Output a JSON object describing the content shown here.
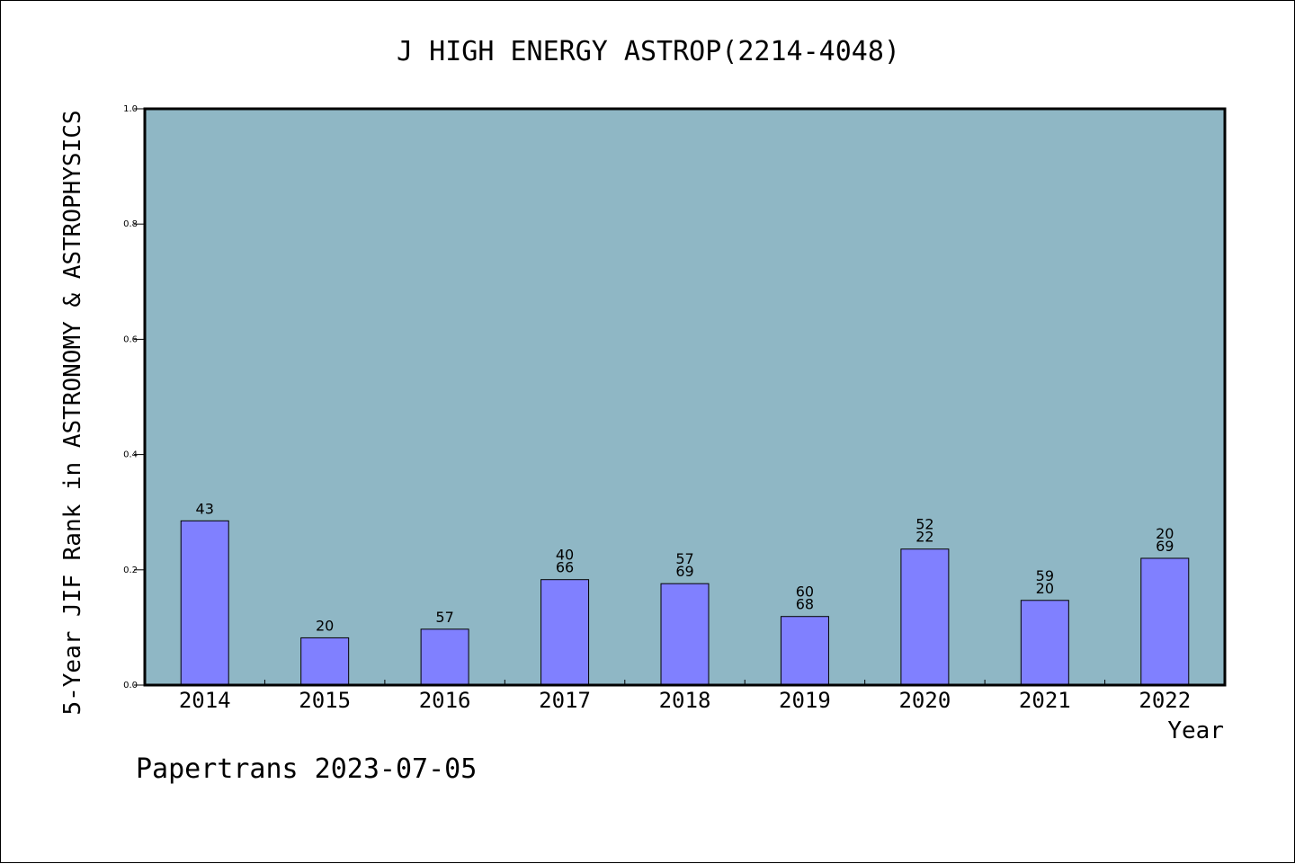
{
  "chart_data": {
    "type": "bar",
    "title": "J HIGH ENERGY ASTROP(2214-4048)",
    "xlabel": "Year",
    "ylabel": "5-Year JIF Rank in ASTRONOMY & ASTROPHYSICS",
    "ylim": [
      0.0,
      1.0
    ],
    "yticks": [
      "0.0",
      "0.2",
      "0.4",
      "0.6",
      "0.8",
      "1.0"
    ],
    "categories": [
      "2014",
      "2015",
      "2016",
      "2017",
      "2018",
      "2019",
      "2020",
      "2021",
      "2022"
    ],
    "values": [
      0.285,
      0.082,
      0.097,
      0.183,
      0.176,
      0.119,
      0.236,
      0.147,
      0.22
    ],
    "bar_labels": [
      [
        "43"
      ],
      [
        "20"
      ],
      [
        "57"
      ],
      [
        "40",
        "66"
      ],
      [
        "57",
        "69"
      ],
      [
        "60",
        "68"
      ],
      [
        "52",
        "22"
      ],
      [
        "59",
        "20"
      ],
      [
        "20",
        "69"
      ]
    ],
    "grid": false,
    "colors": {
      "plot_background": "#8fb7c5",
      "bar_fill": "#8080ff",
      "bar_edge": "#000000"
    }
  },
  "footer": "Papertrans 2023-07-05"
}
